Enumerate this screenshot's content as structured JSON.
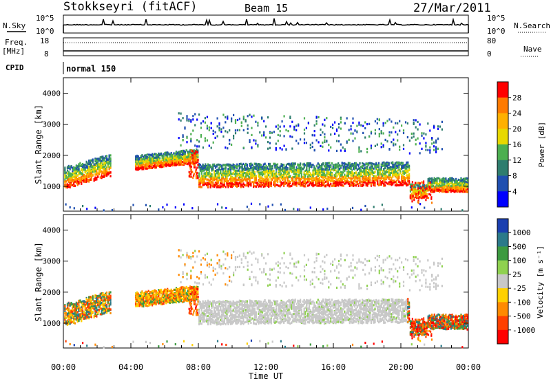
{
  "header": {
    "station": "Stokkseyri (fitACF)",
    "beam": "Beam 15",
    "date": "27/Mar/2011"
  },
  "top_panels": {
    "nsky_label": "N.Sky",
    "nsearch_label": "N.Search",
    "noise_ticks": [
      "10^5",
      "10^0"
    ],
    "freq_label_1": "Freq.",
    "freq_label_2": "[MHz]",
    "freq_ticks": [
      "18",
      "8"
    ],
    "nave_label": "Nave",
    "nave_ticks": [
      "80",
      "0"
    ],
    "cpid_label": "CPID",
    "cpid_value": "normal 150"
  },
  "chart_data": [
    {
      "type": "heatmap",
      "name": "power",
      "ylabel": "Slant Range [km]",
      "ylim": [
        200,
        4500
      ],
      "yticks": [
        1000,
        2000,
        3000,
        4000
      ],
      "xlim": [
        0,
        24
      ],
      "colorbar_label": "Power [dB]",
      "colorbar_ticks": [
        "28",
        "24",
        "20",
        "16",
        "12",
        "8",
        "4"
      ],
      "colorbar_colors": [
        "#ff0000",
        "#ff7a00",
        "#ffb000",
        "#e8d800",
        "#4caf50",
        "#2e7d6e",
        "#1f4fb0",
        "#0000ff"
      ],
      "grid": false
    },
    {
      "type": "heatmap",
      "name": "velocity",
      "ylabel": "Slant Range [km]",
      "ylim": [
        200,
        4500
      ],
      "yticks": [
        1000,
        2000,
        3000,
        4000
      ],
      "xlim": [
        0,
        24
      ],
      "colorbar_label": "Velocity [m s⁻¹]",
      "colorbar_ticks": [
        "1000",
        "500",
        "100",
        "25",
        "-25",
        "-100",
        "-500",
        "-1000"
      ],
      "colorbar_colors": [
        "#1a3fb0",
        "#2b7a8a",
        "#3c9a40",
        "#8fd14f",
        "#c8c8c8",
        "#ffd000",
        "#ff8a00",
        "#ff4000",
        "#ff0000"
      ],
      "grid": false
    }
  ],
  "xaxis": {
    "ticks": [
      "00:00",
      "04:00",
      "08:00",
      "12:00",
      "16:00",
      "20:00",
      "00:00"
    ],
    "label": "Time UT"
  }
}
